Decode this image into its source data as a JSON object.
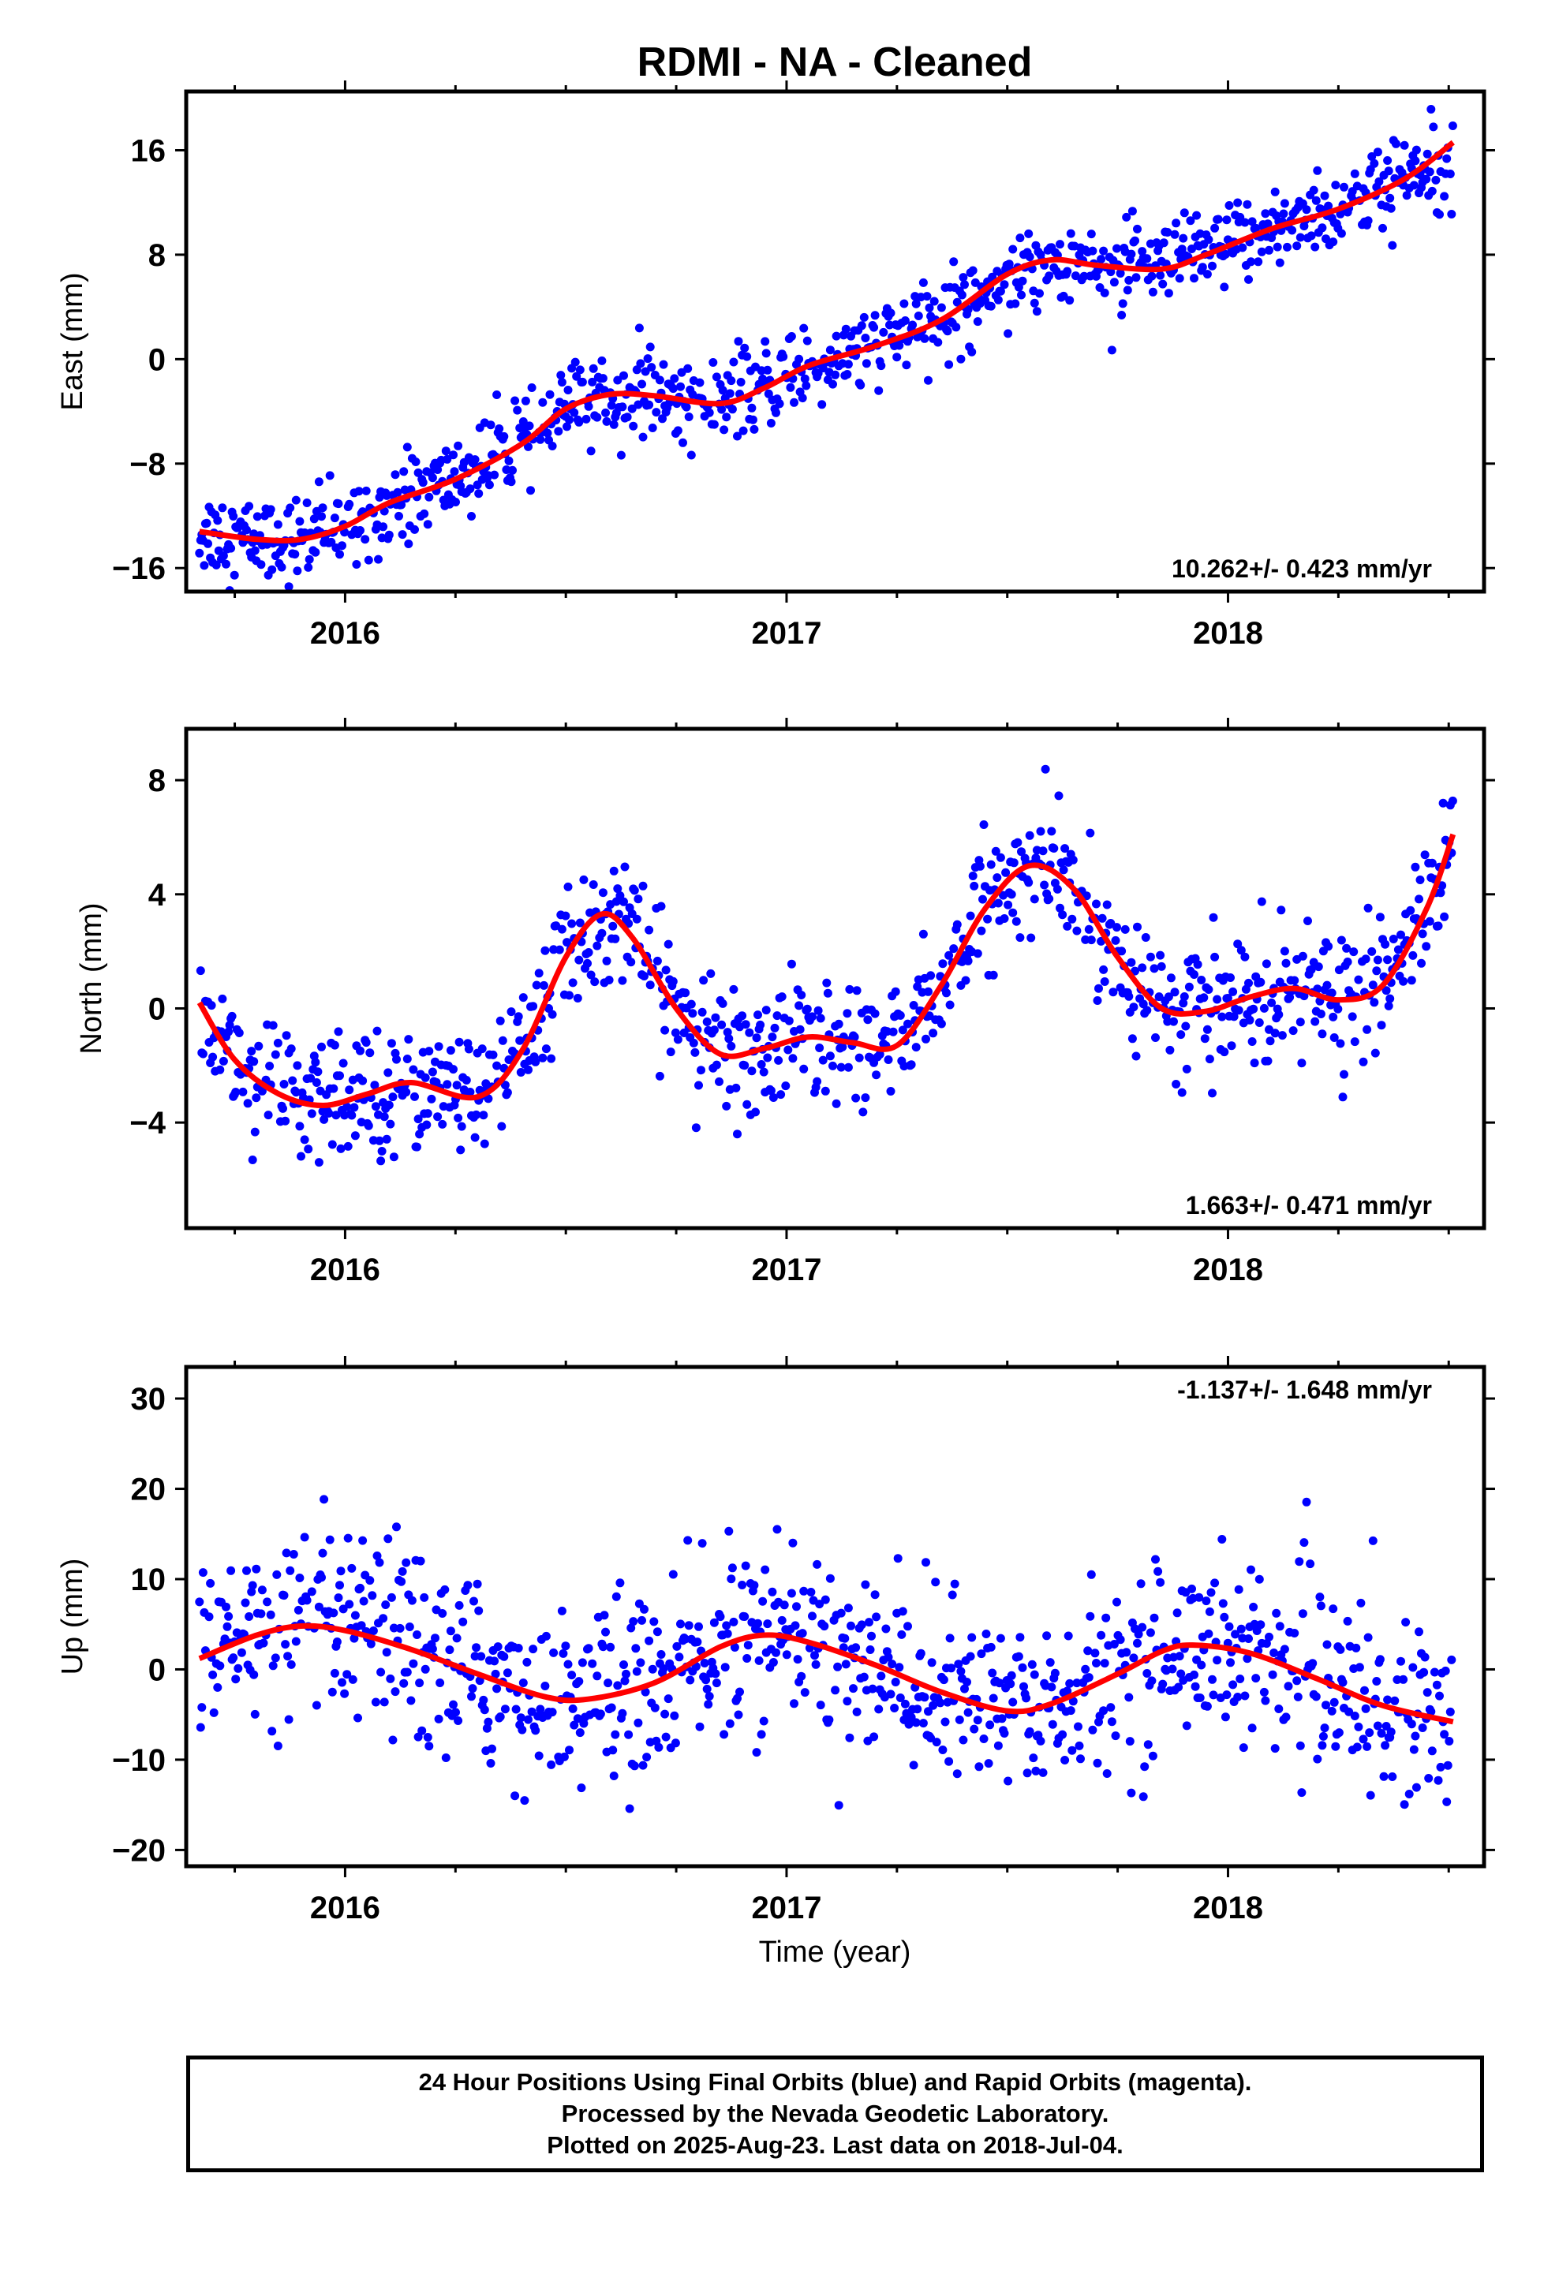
{
  "title": "RDMI  - NA - Cleaned",
  "xlabel": "Time (year)",
  "footer": {
    "line1": "24 Hour Positions Using Final Orbits (blue) and Rapid Orbits (magenta).",
    "line2": "Processed by the Nevada Geodetic Laboratory.",
    "line3": "Plotted on 2025-Aug-23. Last data on 2018-Jul-04."
  },
  "colors": {
    "data_points": "#0000ff",
    "fit_line": "#ff0000",
    "frame": "#000000"
  },
  "chart_data": [
    {
      "type": "scatter",
      "ylabel": "East (mm)",
      "rate_label": "10.262+/- 0.423 mm/yr",
      "x_ticks": [
        2016,
        2017,
        2018
      ],
      "y_ticks": [
        -16,
        -8,
        0,
        8,
        16
      ],
      "y_tick_labels": [
        "−16",
        "−8",
        "0",
        "8",
        "16"
      ],
      "xlim": [
        2015.64,
        2018.58
      ],
      "ylim": [
        -17.8,
        20.5
      ],
      "fit": [
        [
          2015.67,
          -13.2
        ],
        [
          2015.8,
          -13.8
        ],
        [
          2015.9,
          -13.8
        ],
        [
          2016.0,
          -12.8
        ],
        [
          2016.1,
          -11.0
        ],
        [
          2016.25,
          -9.2
        ],
        [
          2016.4,
          -6.5
        ],
        [
          2016.5,
          -3.8
        ],
        [
          2016.6,
          -2.7
        ],
        [
          2016.7,
          -2.8
        ],
        [
          2016.85,
          -3.4
        ],
        [
          2016.95,
          -2.2
        ],
        [
          2017.05,
          -0.5
        ],
        [
          2017.2,
          1.0
        ],
        [
          2017.35,
          3.0
        ],
        [
          2017.5,
          6.5
        ],
        [
          2017.6,
          7.6
        ],
        [
          2017.7,
          7.2
        ],
        [
          2017.85,
          6.9
        ],
        [
          2017.95,
          8.0
        ],
        [
          2018.1,
          10.0
        ],
        [
          2018.25,
          11.5
        ],
        [
          2018.4,
          13.8
        ],
        [
          2018.51,
          16.6
        ]
      ],
      "scatter_sigma": 1.6
    },
    {
      "type": "scatter",
      "ylabel": "North (mm)",
      "rate_label": "1.663+/- 0.471 mm/yr",
      "x_ticks": [
        2016,
        2017,
        2018
      ],
      "y_ticks": [
        -4,
        0,
        4,
        8
      ],
      "y_tick_labels": [
        "−4",
        "0",
        "4",
        "8"
      ],
      "xlim": [
        2015.64,
        2018.58
      ],
      "ylim": [
        -7.7,
        9.8
      ],
      "fit": [
        [
          2015.67,
          0.2
        ],
        [
          2015.75,
          -1.8
        ],
        [
          2015.85,
          -3.0
        ],
        [
          2015.95,
          -3.4
        ],
        [
          2016.05,
          -3.0
        ],
        [
          2016.15,
          -2.6
        ],
        [
          2016.3,
          -3.1
        ],
        [
          2016.4,
          -1.5
        ],
        [
          2016.5,
          1.8
        ],
        [
          2016.58,
          3.3
        ],
        [
          2016.65,
          2.5
        ],
        [
          2016.75,
          0.0
        ],
        [
          2016.85,
          -1.6
        ],
        [
          2016.95,
          -1.4
        ],
        [
          2017.05,
          -1.0
        ],
        [
          2017.15,
          -1.2
        ],
        [
          2017.25,
          -1.3
        ],
        [
          2017.35,
          0.8
        ],
        [
          2017.45,
          3.5
        ],
        [
          2017.55,
          5.0
        ],
        [
          2017.65,
          4.2
        ],
        [
          2017.75,
          1.8
        ],
        [
          2017.85,
          0.0
        ],
        [
          2017.95,
          -0.1
        ],
        [
          2018.05,
          0.4
        ],
        [
          2018.15,
          0.7
        ],
        [
          2018.25,
          0.3
        ],
        [
          2018.35,
          0.8
        ],
        [
          2018.45,
          3.5
        ],
        [
          2018.51,
          6.1
        ]
      ],
      "scatter_sigma": 1.1
    },
    {
      "type": "scatter",
      "ylabel": "Up (mm)",
      "rate_label": "-1.137+/- 1.648 mm/yr",
      "x_ticks": [
        2016,
        2017,
        2018
      ],
      "y_ticks": [
        -20,
        -10,
        0,
        10,
        20,
        30
      ],
      "y_tick_labels": [
        "−20",
        "−10",
        "0",
        "10",
        "20",
        "30"
      ],
      "xlim": [
        2015.64,
        2018.58
      ],
      "ylim": [
        -21.8,
        33.5
      ],
      "fit": [
        [
          2015.67,
          1.2
        ],
        [
          2015.8,
          3.8
        ],
        [
          2015.9,
          4.8
        ],
        [
          2016.0,
          4.3
        ],
        [
          2016.15,
          2.2
        ],
        [
          2016.3,
          -0.5
        ],
        [
          2016.45,
          -3.0
        ],
        [
          2016.55,
          -3.3
        ],
        [
          2016.7,
          -1.5
        ],
        [
          2016.85,
          2.5
        ],
        [
          2016.95,
          3.8
        ],
        [
          2017.05,
          3.0
        ],
        [
          2017.2,
          0.5
        ],
        [
          2017.35,
          -2.5
        ],
        [
          2017.5,
          -4.6
        ],
        [
          2017.6,
          -3.8
        ],
        [
          2017.75,
          -0.5
        ],
        [
          2017.85,
          2.0
        ],
        [
          2017.92,
          2.7
        ],
        [
          2018.05,
          1.8
        ],
        [
          2018.2,
          -1.0
        ],
        [
          2018.35,
          -4.0
        ],
        [
          2018.51,
          -5.8
        ]
      ],
      "scatter_sigma": 5.0
    }
  ]
}
